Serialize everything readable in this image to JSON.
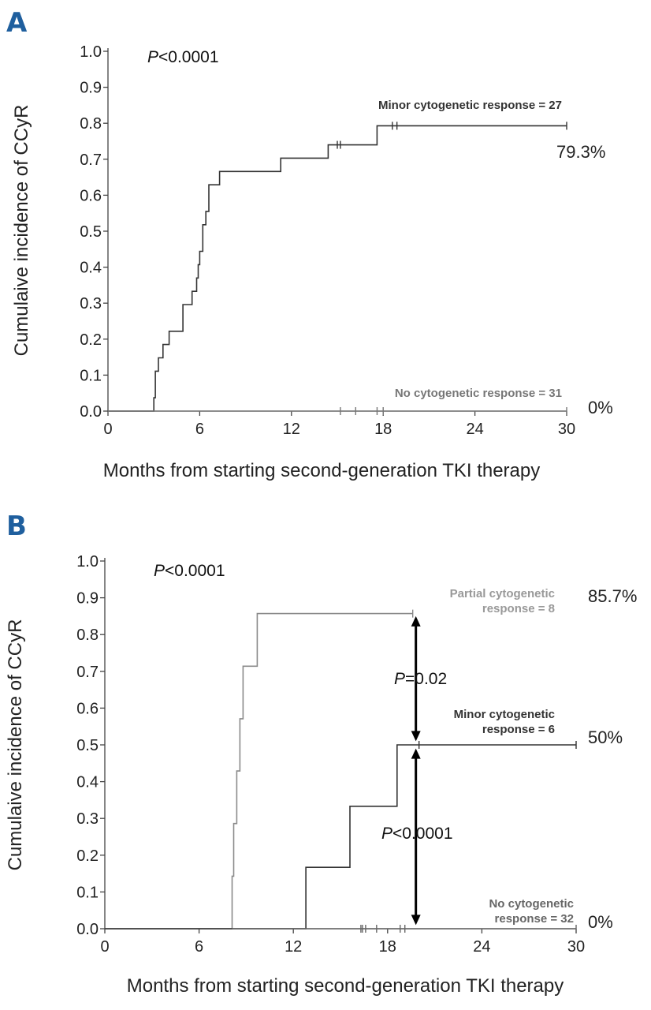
{
  "chart_data": [
    {
      "type": "line",
      "panel": "A",
      "xlabel": "Months from starting second-generation TKI therapy",
      "ylabel": "Cumulaive incidence of CCyR",
      "xlim": [
        0,
        30
      ],
      "ylim": [
        0,
        1.0
      ],
      "xticks": [
        "0",
        "6",
        "12",
        "18",
        "24",
        "30"
      ],
      "yticks": [
        "0.0",
        "0.1",
        "0.2",
        "0.3",
        "0.4",
        "0.5",
        "0.6",
        "0.7",
        "0.8",
        "0.9",
        "1.0"
      ],
      "pvalue": {
        "italic": "P",
        "rest": "<0.0001"
      },
      "series": [
        {
          "name": "Minor cytogenetic response = 27",
          "end_label": "79.3%",
          "color": "#333333",
          "x": [
            0,
            3.0,
            3.1,
            3.3,
            3.6,
            3.9,
            4.0,
            4.3,
            4.9,
            5.5,
            5.8,
            5.9,
            6.0,
            6.2,
            6.4,
            6.6,
            7.3,
            11.3,
            14.4,
            17.6,
            30
          ],
          "y": [
            0,
            0.037,
            0.111,
            0.148,
            0.185,
            0.185,
            0.222,
            0.222,
            0.296,
            0.333,
            0.37,
            0.407,
            0.444,
            0.518,
            0.555,
            0.629,
            0.666,
            0.703,
            0.74,
            0.793,
            0.793
          ],
          "censor_x": [
            15.0,
            15.2,
            18.6,
            18.9,
            30
          ]
        },
        {
          "name": "No cytogenetic response = 31",
          "end_label": "0%",
          "color": "#777777",
          "x": [
            0,
            30
          ],
          "y": [
            0,
            0
          ],
          "censor_x": [
            15.2,
            16.2,
            17.6,
            18.0,
            30
          ]
        }
      ]
    },
    {
      "type": "line",
      "panel": "B",
      "xlabel": "Months from starting second-generation TKI therapy",
      "ylabel": "Cumulaive incidence of CCyR",
      "xlim": [
        0,
        30
      ],
      "ylim": [
        0,
        1.0
      ],
      "xticks": [
        "0",
        "6",
        "12",
        "18",
        "24",
        "30"
      ],
      "yticks": [
        "0.0",
        "0.1",
        "0.2",
        "0.3",
        "0.4",
        "0.5",
        "0.6",
        "0.7",
        "0.8",
        "0.9",
        "1.0"
      ],
      "pvalue": {
        "italic": "P",
        "rest": "<0.0001"
      },
      "series": [
        {
          "name_lines": [
            "Partial cytogenetic",
            "response = 8"
          ],
          "end_label": "85.7%",
          "color": "#8a8a8a",
          "x": [
            0,
            8.1,
            8.2,
            8.4,
            8.6,
            8.8,
            9.7,
            19.6
          ],
          "y": [
            0,
            0.143,
            0.286,
            0.429,
            0.571,
            0.714,
            0.857,
            0.857
          ],
          "censor_x": [
            19.6
          ]
        },
        {
          "name_lines": [
            "Minor cytogenetic",
            "response = 6"
          ],
          "end_label": "50%",
          "color": "#333333",
          "x": [
            0,
            12.8,
            15.6,
            18.6,
            30
          ],
          "y": [
            0,
            0.167,
            0.333,
            0.5,
            0.5
          ],
          "censor_x": [
            20.0,
            30
          ]
        },
        {
          "name_lines": [
            "No cytogenetic",
            "response = 32"
          ],
          "end_label": "0%",
          "color": "#666666",
          "x": [
            8.1,
            30
          ],
          "y": [
            0,
            0
          ],
          "censor_x": [
            16.3,
            16.4,
            16.6,
            17.3,
            18.8,
            19.1,
            30
          ]
        }
      ],
      "comparisons": [
        {
          "italic": "P",
          "rest": "=0.02",
          "x": 19.8,
          "y_from": 0.51,
          "y_to": 0.85
        },
        {
          "italic": "P",
          "rest": "<0.0001",
          "x": 19.8,
          "y_from": 0.01,
          "y_to": 0.49
        }
      ]
    }
  ]
}
